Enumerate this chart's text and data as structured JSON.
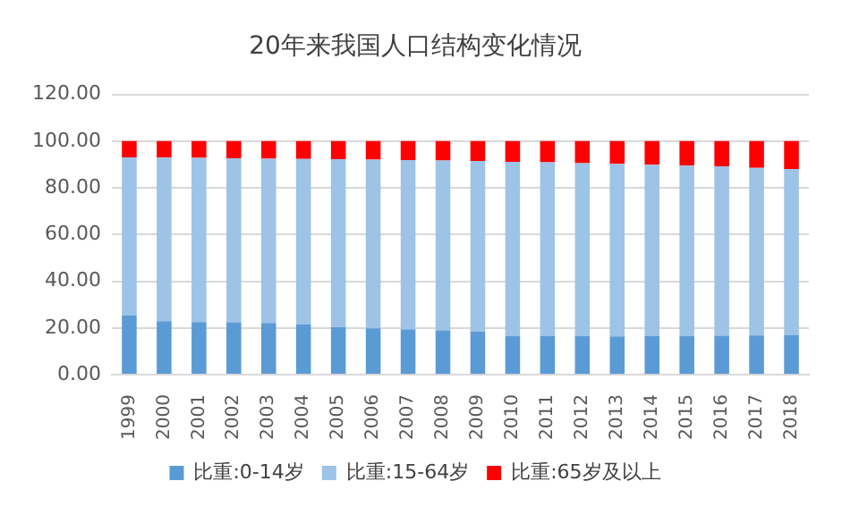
{
  "chart_data": {
    "type": "bar",
    "title": "20年来我国人口结构变化情况",
    "stacked": true,
    "categories": [
      "1999",
      "2000",
      "2001",
      "2002",
      "2003",
      "2004",
      "2005",
      "2006",
      "2007",
      "2008",
      "2009",
      "2010",
      "2011",
      "2012",
      "2013",
      "2014",
      "2015",
      "2016",
      "2017",
      "2018"
    ],
    "series": [
      {
        "name": "比重:0-14岁",
        "color": "#5b9bd5",
        "values": [
          25.4,
          22.9,
          22.5,
          22.4,
          22.1,
          21.5,
          20.3,
          19.8,
          19.4,
          19.0,
          18.5,
          16.6,
          16.5,
          16.5,
          16.4,
          16.5,
          16.5,
          16.7,
          16.8,
          16.9
        ]
      },
      {
        "name": "比重:15-64岁",
        "color": "#9dc3e6",
        "values": [
          67.7,
          70.1,
          70.4,
          70.3,
          70.4,
          70.9,
          72.0,
          72.3,
          72.5,
          72.7,
          73.0,
          74.5,
          74.4,
          74.1,
          73.9,
          73.4,
          73.0,
          72.5,
          71.8,
          71.2
        ]
      },
      {
        "name": "比重:65岁及以上",
        "color": "#ff0000",
        "values": [
          6.9,
          7.0,
          7.1,
          7.3,
          7.5,
          7.6,
          7.7,
          7.9,
          8.1,
          8.3,
          8.5,
          8.9,
          9.1,
          9.4,
          9.7,
          10.1,
          10.5,
          10.8,
          11.4,
          11.9
        ]
      }
    ],
    "ylim": [
      0,
      120
    ],
    "yticks": [
      {
        "value": 0,
        "label": "0.00"
      },
      {
        "value": 20,
        "label": "20.00"
      },
      {
        "value": 40,
        "label": "40.00"
      },
      {
        "value": 60,
        "label": "60.00"
      },
      {
        "value": 80,
        "label": "80.00"
      },
      {
        "value": 100,
        "label": "100.00"
      },
      {
        "value": 120,
        "label": "120.00"
      }
    ],
    "grid": "y",
    "legend": "bottom"
  }
}
